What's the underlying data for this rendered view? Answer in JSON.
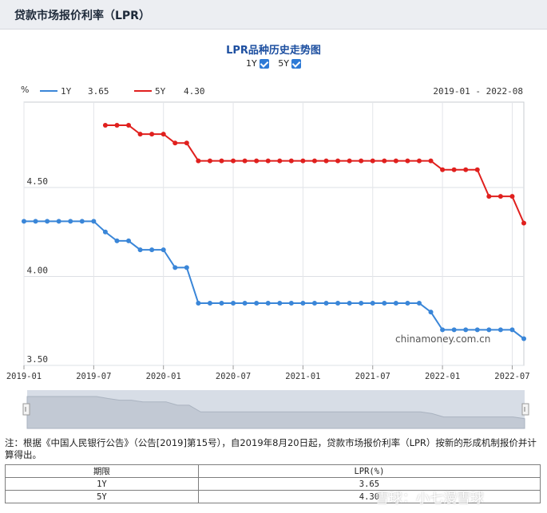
{
  "page": {
    "header_title": "贷款市场报价利率（LPR）"
  },
  "chart_header": {
    "title": "LPR品种历史走势图",
    "toggles": [
      {
        "label": "1Y",
        "checked": true
      },
      {
        "label": "5Y",
        "checked": true
      }
    ]
  },
  "chart_data": {
    "type": "line",
    "unit_label": "%",
    "date_range": "2019-01 - 2022-08",
    "watermark": "chinamoney.com.cn",
    "ylim": [
      3.5,
      4.98
    ],
    "yticks": [
      "3.50",
      "4.00",
      "4.50"
    ],
    "xticks": [
      "2019-01",
      "2019-07",
      "2020-01",
      "2020-07",
      "2021-01",
      "2021-07",
      "2022-01",
      "2022-07"
    ],
    "grid": true,
    "legend_position": "top-left",
    "series": [
      {
        "name": "1Y",
        "latest": "3.65",
        "color": "#3a86d8",
        "points": [
          [
            "2019-01",
            4.31
          ],
          [
            "2019-02",
            4.31
          ],
          [
            "2019-03",
            4.31
          ],
          [
            "2019-04",
            4.31
          ],
          [
            "2019-05",
            4.31
          ],
          [
            "2019-06",
            4.31
          ],
          [
            "2019-07",
            4.31
          ],
          [
            "2019-08",
            4.25
          ],
          [
            "2019-09",
            4.2
          ],
          [
            "2019-10",
            4.2
          ],
          [
            "2019-11",
            4.15
          ],
          [
            "2019-12",
            4.15
          ],
          [
            "2020-01",
            4.15
          ],
          [
            "2020-02",
            4.05
          ],
          [
            "2020-03",
            4.05
          ],
          [
            "2020-04",
            3.85
          ],
          [
            "2020-05",
            3.85
          ],
          [
            "2020-06",
            3.85
          ],
          [
            "2020-07",
            3.85
          ],
          [
            "2020-08",
            3.85
          ],
          [
            "2020-09",
            3.85
          ],
          [
            "2020-10",
            3.85
          ],
          [
            "2020-11",
            3.85
          ],
          [
            "2020-12",
            3.85
          ],
          [
            "2021-01",
            3.85
          ],
          [
            "2021-02",
            3.85
          ],
          [
            "2021-03",
            3.85
          ],
          [
            "2021-04",
            3.85
          ],
          [
            "2021-05",
            3.85
          ],
          [
            "2021-06",
            3.85
          ],
          [
            "2021-07",
            3.85
          ],
          [
            "2021-08",
            3.85
          ],
          [
            "2021-09",
            3.85
          ],
          [
            "2021-10",
            3.85
          ],
          [
            "2021-11",
            3.85
          ],
          [
            "2021-12",
            3.8
          ],
          [
            "2022-01",
            3.7
          ],
          [
            "2022-02",
            3.7
          ],
          [
            "2022-03",
            3.7
          ],
          [
            "2022-04",
            3.7
          ],
          [
            "2022-05",
            3.7
          ],
          [
            "2022-06",
            3.7
          ],
          [
            "2022-07",
            3.7
          ],
          [
            "2022-08",
            3.65
          ]
        ]
      },
      {
        "name": "5Y",
        "latest": "4.30",
        "color": "#e0201e",
        "points": [
          [
            "2019-08",
            4.85
          ],
          [
            "2019-09",
            4.85
          ],
          [
            "2019-10",
            4.85
          ],
          [
            "2019-11",
            4.8
          ],
          [
            "2019-12",
            4.8
          ],
          [
            "2020-01",
            4.8
          ],
          [
            "2020-02",
            4.75
          ],
          [
            "2020-03",
            4.75
          ],
          [
            "2020-04",
            4.65
          ],
          [
            "2020-05",
            4.65
          ],
          [
            "2020-06",
            4.65
          ],
          [
            "2020-07",
            4.65
          ],
          [
            "2020-08",
            4.65
          ],
          [
            "2020-09",
            4.65
          ],
          [
            "2020-10",
            4.65
          ],
          [
            "2020-11",
            4.65
          ],
          [
            "2020-12",
            4.65
          ],
          [
            "2021-01",
            4.65
          ],
          [
            "2021-02",
            4.65
          ],
          [
            "2021-03",
            4.65
          ],
          [
            "2021-04",
            4.65
          ],
          [
            "2021-05",
            4.65
          ],
          [
            "2021-06",
            4.65
          ],
          [
            "2021-07",
            4.65
          ],
          [
            "2021-08",
            4.65
          ],
          [
            "2021-09",
            4.65
          ],
          [
            "2021-10",
            4.65
          ],
          [
            "2021-11",
            4.65
          ],
          [
            "2021-12",
            4.65
          ],
          [
            "2022-01",
            4.6
          ],
          [
            "2022-02",
            4.6
          ],
          [
            "2022-03",
            4.6
          ],
          [
            "2022-04",
            4.6
          ],
          [
            "2022-05",
            4.45
          ],
          [
            "2022-06",
            4.45
          ],
          [
            "2022-07",
            4.45
          ],
          [
            "2022-08",
            4.3
          ]
        ]
      }
    ]
  },
  "note": "注：根据《中国人民银行公告》（公告[2019]第15号），自2019年8月20日起，贷款市场报价利率（LPR）按新的形成机制报价并计算得出。",
  "rates_table": {
    "headers": [
      "期限",
      "LPR(%)"
    ],
    "rows": [
      [
        "1Y",
        "3.65"
      ],
      [
        "5Y",
        "4.30"
      ]
    ]
  },
  "overlay_watermark": "雪球：小七漫雪球"
}
